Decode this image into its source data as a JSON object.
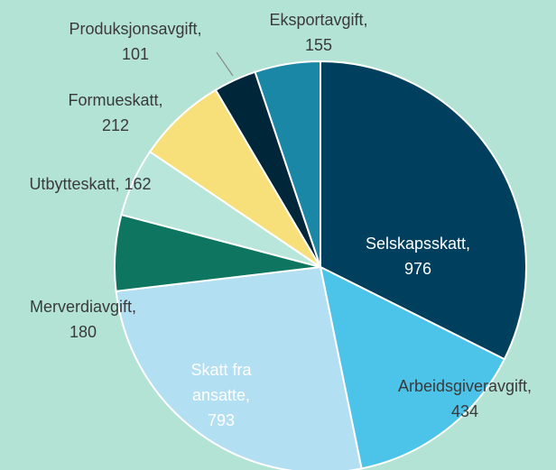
{
  "chart_data": {
    "type": "pie",
    "categories": [
      "Selskapsskatt,",
      "Arbeidsgiveravgift,",
      "Skatt fra ansatte,",
      "Merverdiavgift,",
      "Utbytteskatt,",
      "Formueskatt,",
      "Produksjonsavgift,",
      "Eksportavgift,"
    ],
    "values": [
      976,
      434,
      793,
      180,
      162,
      212,
      101,
      155
    ],
    "colors": [
      "#00405e",
      "#4cc3e8",
      "#b3dff2",
      "#0e7561",
      "#b8e6da",
      "#f7e07a",
      "#00263a",
      "#1a87a6"
    ]
  }
}
